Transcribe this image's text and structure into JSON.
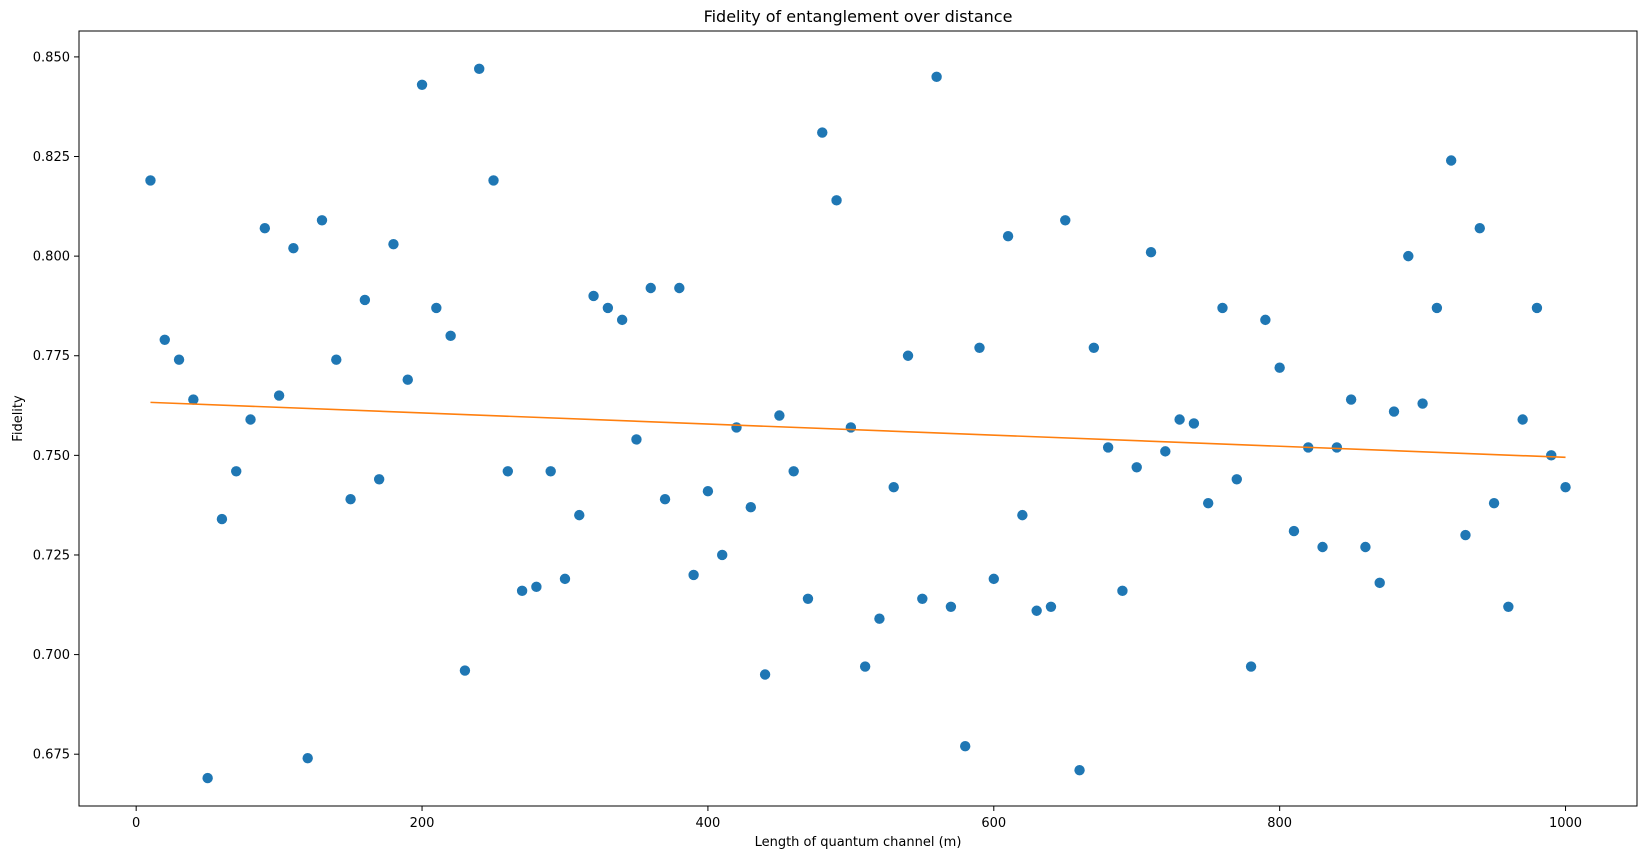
{
  "chart_data": {
    "type": "scatter",
    "title": "Fidelity of entanglement over distance",
    "xlabel": "Length of quantum channel (m)",
    "ylabel": "Fidelity",
    "xlim": [
      -40,
      1050
    ],
    "ylim": [
      0.662,
      0.8565
    ],
    "xticks": [
      0,
      200,
      400,
      600,
      800,
      1000
    ],
    "xtick_labels": [
      "0",
      "200",
      "400",
      "600",
      "800",
      "1000"
    ],
    "yticks": [
      0.675,
      0.7,
      0.725,
      0.75,
      0.775,
      0.8,
      0.825,
      0.85
    ],
    "ytick_labels": [
      "0.675",
      "0.700",
      "0.725",
      "0.750",
      "0.775",
      "0.800",
      "0.825",
      "0.850"
    ],
    "grid": false,
    "colors": {
      "points": "#1f77b4",
      "trend": "#ff7f0e",
      "axes": "#000000"
    },
    "series": [
      {
        "kind": "scatter",
        "x": [
          10,
          20,
          30,
          40,
          50,
          60,
          70,
          80,
          90,
          100,
          110,
          120,
          130,
          140,
          150,
          160,
          170,
          180,
          190,
          200,
          210,
          220,
          230,
          240,
          250,
          260,
          270,
          280,
          290,
          300,
          310,
          320,
          330,
          340,
          350,
          360,
          370,
          380,
          390,
          400,
          410,
          420,
          430,
          440,
          450,
          460,
          470,
          480,
          490,
          500,
          510,
          520,
          530,
          540,
          550,
          560,
          570,
          580,
          590,
          600,
          610,
          620,
          630,
          640,
          650,
          660,
          670,
          680,
          690,
          700,
          710,
          720,
          730,
          740,
          750,
          760,
          770,
          780,
          790,
          800,
          810,
          820,
          830,
          840,
          850,
          860,
          870,
          880,
          890,
          900,
          910,
          920,
          930,
          940,
          950,
          960,
          970,
          980,
          990,
          1000
        ],
        "y": [
          0.819,
          0.779,
          0.774,
          0.764,
          0.669,
          0.734,
          0.746,
          0.759,
          0.807,
          0.765,
          0.802,
          0.674,
          0.809,
          0.774,
          0.739,
          0.789,
          0.744,
          0.803,
          0.769,
          0.843,
          0.787,
          0.78,
          0.696,
          0.847,
          0.819,
          0.746,
          0.716,
          0.717,
          0.746,
          0.719,
          0.735,
          0.79,
          0.787,
          0.784,
          0.754,
          0.792,
          0.739,
          0.792,
          0.72,
          0.741,
          0.725,
          0.757,
          0.737,
          0.695,
          0.76,
          0.746,
          0.714,
          0.831,
          0.814,
          0.757,
          0.697,
          0.709,
          0.742,
          0.775,
          0.714,
          0.845,
          0.712,
          0.677,
          0.777,
          0.719,
          0.805,
          0.735,
          0.711,
          0.712,
          0.809,
          0.671,
          0.777,
          0.752,
          0.716,
          0.747,
          0.801,
          0.751,
          0.759,
          0.758,
          0.738,
          0.787,
          0.744,
          0.697,
          0.784,
          0.772,
          0.731,
          0.752,
          0.727,
          0.752,
          0.764,
          0.727,
          0.718,
          0.761,
          0.8,
          0.763,
          0.787,
          0.824,
          0.73,
          0.807,
          0.738,
          0.712,
          0.759,
          0.787,
          0.75,
          0.742
        ]
      },
      {
        "kind": "line",
        "x": [
          10,
          1000
        ],
        "y": [
          0.7633,
          0.7495
        ]
      }
    ]
  }
}
